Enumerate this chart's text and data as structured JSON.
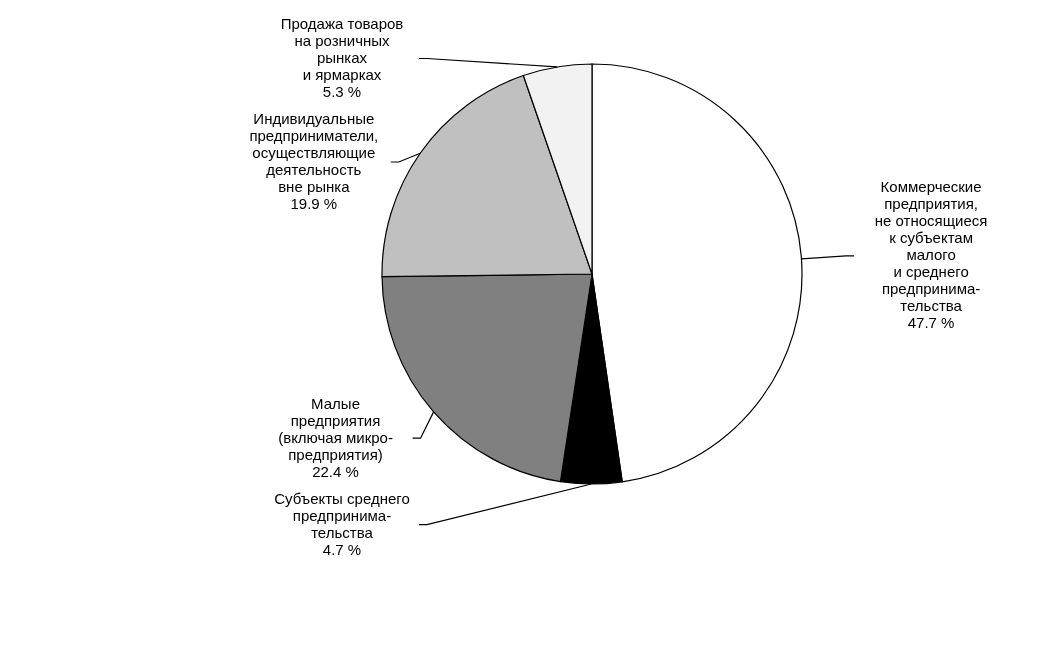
{
  "chart_data": {
    "type": "pie",
    "categories": [
      "Коммерческие\nпредприятия,\nне относящиеся\nк субъектам\nмалого\nи среднего\nпредпринима-\nтельства",
      "Субъекты среднего\nпредпринима-\nтельства",
      "Малые\nпредприятия\n(включая микро-\nпредприятия)",
      "Индивидуальные\nпредприниматели,\nосуществляющие\nдеятельность\nвне рынка",
      "Продажа товаров\nна розничных\nрынках\nи ярмарках"
    ],
    "values": [
      47.7,
      4.7,
      22.4,
      19.9,
      5.3
    ],
    "value_labels": [
      "47.7 %",
      "4.7 %",
      "22.4 %",
      "19.9 %",
      "5.3 %"
    ],
    "colors": [
      "#ffffff",
      "#000000",
      "#808080",
      "#c0c0c0",
      "#f2f2f2"
    ]
  }
}
